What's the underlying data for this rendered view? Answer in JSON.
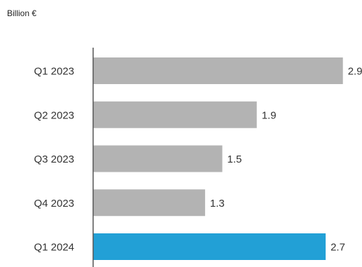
{
  "chart_data": {
    "type": "bar",
    "orientation": "horizontal",
    "unit_label": "Billion €",
    "categories": [
      "Q1 2023",
      "Q2 2023",
      "Q3 2023",
      "Q4 2023",
      "Q1 2024"
    ],
    "values": [
      2.9,
      1.9,
      1.5,
      1.3,
      2.7
    ],
    "value_labels": [
      "2.9",
      "1.9",
      "1.5",
      "1.3",
      "2.7"
    ],
    "xlim": [
      0,
      3.0
    ],
    "grid": false,
    "legend": "none",
    "colors": {
      "default_bar": "#b3b3b3",
      "highlight_bar": "#22a0d6",
      "axis": "#555555"
    },
    "highlight_index": 4
  }
}
